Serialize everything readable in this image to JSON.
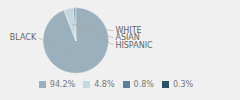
{
  "chart_data": {
    "type": "pie",
    "categories": [
      "BLACK",
      "WHITE",
      "ASIAN",
      "HISPANIC"
    ],
    "values": [
      94.2,
      4.8,
      0.8,
      0.3
    ],
    "value_labels": [
      "94.2%",
      "4.8%",
      "0.8%",
      "0.3%"
    ],
    "colors": [
      "#9ab0bc",
      "#c5d8e2",
      "#5a7f96",
      "#2d4f65"
    ],
    "legend": "bottom"
  }
}
